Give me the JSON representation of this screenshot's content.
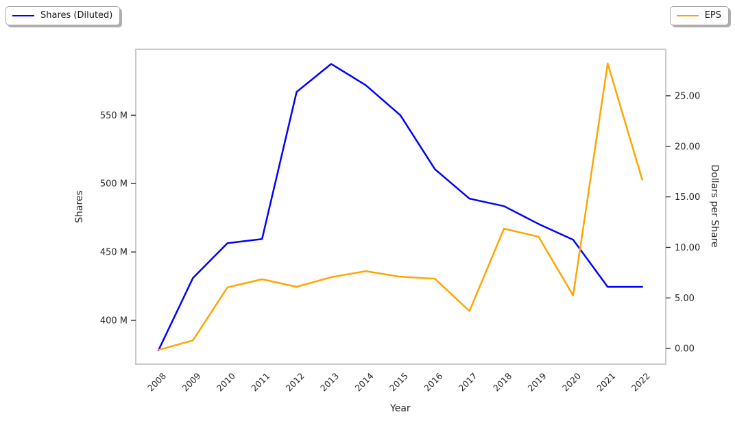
{
  "figure": {
    "legend_left": {
      "label": "Shares (Diluted)",
      "color": "#0000ff",
      "position": "upper left"
    },
    "legend_right": {
      "label": "EPS",
      "color": "#ffa500",
      "position": "upper right"
    }
  },
  "chart_data": {
    "type": "line",
    "title": "",
    "xlabel": "Year",
    "categories": [
      "2008",
      "2009",
      "2010",
      "2011",
      "2012",
      "2013",
      "2014",
      "2015",
      "2016",
      "2017",
      "2018",
      "2019",
      "2020",
      "2021",
      "2022"
    ],
    "axes": {
      "left": {
        "label": "Shares",
        "ylim": [
          368,
          598.2
        ],
        "ticks": [
          {
            "value": 400,
            "label": "400 M"
          },
          {
            "value": 450,
            "label": "450 M"
          },
          {
            "value": 500,
            "label": "500 M"
          },
          {
            "value": 550,
            "label": "550 M"
          }
        ]
      },
      "right": {
        "label": "Dollars per Share",
        "ylim": [
          -1.55,
          29.6
        ],
        "ticks": [
          {
            "value": 0,
            "label": "0.00"
          },
          {
            "value": 5,
            "label": "5.00"
          },
          {
            "value": 10,
            "label": "10.00"
          },
          {
            "value": 15,
            "label": "15.00"
          },
          {
            "value": 20,
            "label": "20.00"
          },
          {
            "value": 25,
            "label": "25.00"
          }
        ]
      }
    },
    "series": [
      {
        "name": "Shares (Diluted)",
        "axis": "left",
        "color": "#0000ff",
        "unit": "M",
        "values": [
          378,
          431,
          456.5,
          459.5,
          567,
          587.5,
          572,
          550,
          510.5,
          489,
          483.5,
          470.5,
          459,
          424.5,
          424.5
        ]
      },
      {
        "name": "EPS",
        "axis": "right",
        "color": "#ffa500",
        "unit": "$",
        "values": [
          -0.15,
          0.8,
          6.05,
          6.85,
          6.1,
          7.05,
          7.65,
          7.1,
          6.9,
          3.7,
          11.85,
          11.05,
          5.25,
          28.2,
          16.7
        ]
      }
    ],
    "grid": false,
    "legend_position": [
      "upper left",
      "upper right"
    ]
  }
}
